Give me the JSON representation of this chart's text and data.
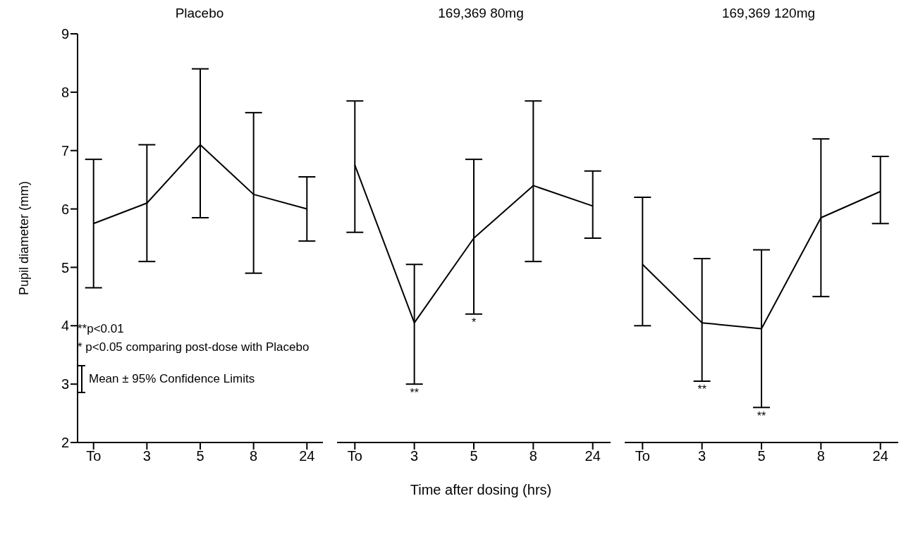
{
  "chart_data": [
    {
      "type": "line",
      "title": "Placebo",
      "ylabel": "Pupil diameter (mm)",
      "categories": [
        "To",
        "3",
        "5",
        "8",
        "24"
      ],
      "ylim": [
        2,
        9
      ],
      "yticks": [
        2,
        3,
        4,
        5,
        6,
        7,
        8,
        9
      ],
      "marker": "none",
      "line_style": "solid",
      "series": [
        {
          "color": "#000000",
          "values": [
            5.75,
            6.1,
            7.1,
            6.25,
            6.0
          ],
          "errors": [
            [
              4.65,
              6.85
            ],
            [
              5.1,
              7.1
            ],
            [
              5.85,
              8.4
            ],
            [
              4.9,
              7.65
            ],
            [
              5.45,
              6.55
            ]
          ]
        }
      ],
      "annotations": [
        "**p<0.01",
        "* p<0.05 comparing post-dose with Placebo",
        "Mean ± 95% Confidence Limits"
      ]
    },
    {
      "type": "line",
      "title": "169,369  80mg",
      "xlabel": "Time after dosing (hrs)",
      "categories": [
        "To",
        "3",
        "5",
        "8",
        "24"
      ],
      "ylim": [
        2,
        9
      ],
      "tick_labels": "x",
      "marker": "none",
      "line_style": "solid",
      "series": [
        {
          "color": "#000000",
          "values": [
            6.75,
            4.05,
            5.5,
            6.4,
            6.05
          ],
          "errors": [
            [
              5.6,
              7.85
            ],
            [
              3.0,
              5.05
            ],
            [
              4.2,
              6.85
            ],
            [
              5.1,
              7.85
            ],
            [
              5.5,
              6.65
            ]
          ]
        }
      ],
      "annotations": [
        {
          "text": "**",
          "x": "3",
          "y": 3.0
        },
        {
          "text": "*",
          "x": "5",
          "y": 4.2
        }
      ]
    },
    {
      "type": "line",
      "title": "169,369  120mg",
      "categories": [
        "To",
        "3",
        "5",
        "8",
        "24"
      ],
      "ylim": [
        2,
        9
      ],
      "tick_labels": "x",
      "marker": "none",
      "line_style": "solid",
      "series": [
        {
          "color": "#000000",
          "values": [
            5.05,
            4.05,
            3.95,
            5.85,
            6.3
          ],
          "errors": [
            [
              4.0,
              6.2
            ],
            [
              3.05,
              5.15
            ],
            [
              2.6,
              5.3
            ],
            [
              4.5,
              7.2
            ],
            [
              5.75,
              6.9
            ]
          ]
        }
      ],
      "annotations": [
        {
          "text": "**",
          "x": "3",
          "y": 3.05
        },
        {
          "text": "**",
          "x": "5",
          "y": 2.6
        }
      ]
    }
  ]
}
